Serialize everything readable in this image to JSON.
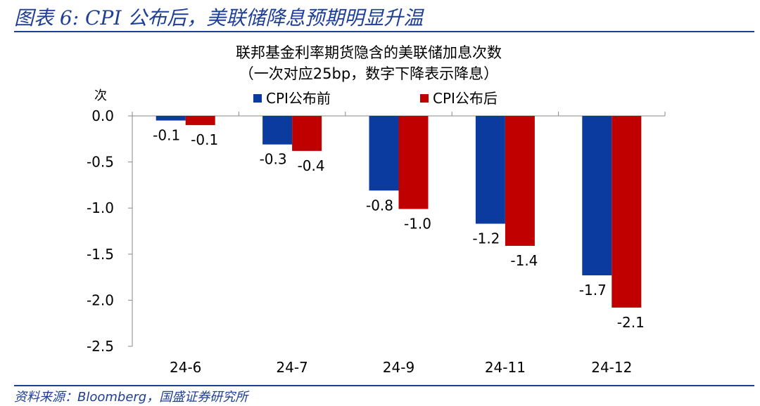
{
  "header": {
    "title": "图表 6:  CPI 公布后，美联储降息预期明显升温"
  },
  "footer": {
    "source": "资料来源：Bloomberg，国盛证券研究所"
  },
  "colors": {
    "accent": "#1f3f96",
    "series_before": "#0b3b9e",
    "series_after": "#c00000",
    "axis": "#888888"
  },
  "chart_data": {
    "type": "bar",
    "title": "联邦基金利率期货隐含的美联储加息次数",
    "subtitle": "（一次对应25bp，数字下降表示降息）",
    "ylabel": "次",
    "xlabel": "",
    "categories": [
      "24-6",
      "24-7",
      "24-9",
      "24-11",
      "24-12"
    ],
    "series": [
      {
        "name": "CPI公布前",
        "values": [
          -0.05,
          -0.31,
          -0.81,
          -1.17,
          -1.73
        ],
        "labels": [
          "-0.1",
          "-0.3",
          "-0.8",
          "-1.2",
          "-1.7"
        ]
      },
      {
        "name": "CPI公布后",
        "values": [
          -0.1,
          -0.38,
          -1.01,
          -1.41,
          -2.08
        ],
        "labels": [
          "-0.1",
          "-0.4",
          "-1.0",
          "-1.4",
          "-2.1"
        ]
      }
    ],
    "yticks": [
      0.0,
      -0.5,
      -1.0,
      -1.5,
      -2.0,
      -2.5
    ],
    "ytick_labels": [
      "0.0",
      "-0.5",
      "-1.0",
      "-1.5",
      "-2.0",
      "-2.5"
    ],
    "ylim": [
      -2.5,
      0
    ],
    "grid": false,
    "legend": "top"
  }
}
